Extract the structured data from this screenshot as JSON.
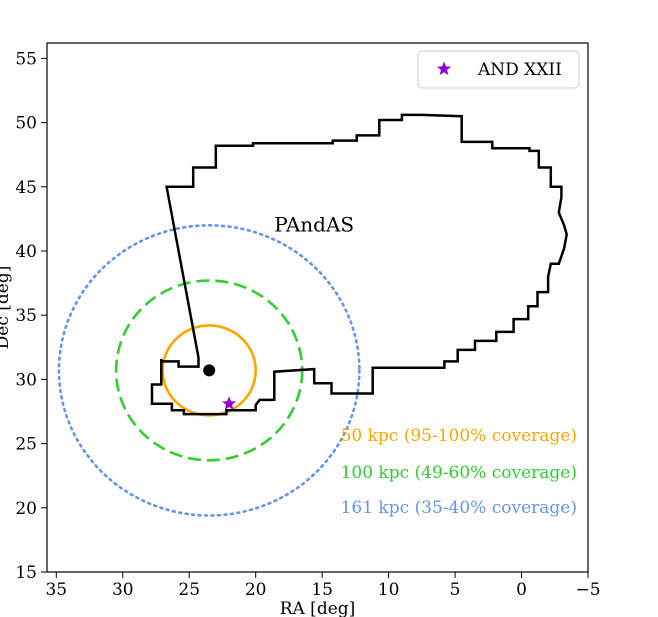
{
  "chart_data": {
    "type": "line",
    "title": "",
    "xlabel": "RA [deg]",
    "ylabel": "Dec [deg]",
    "xlim": [
      35.7,
      -5
    ],
    "ylim": [
      15,
      56.2
    ],
    "x_ticks": [
      35,
      30,
      25,
      20,
      15,
      10,
      5,
      0,
      -5
    ],
    "x_tick_labels": [
      "35",
      "30",
      "25",
      "20",
      "15",
      "10",
      "5",
      "0",
      "−5"
    ],
    "y_ticks": [
      15,
      20,
      25,
      30,
      35,
      40,
      45,
      50,
      55
    ],
    "y_tick_labels": [
      "15",
      "20",
      "25",
      "30",
      "35",
      "40",
      "45",
      "50",
      "55"
    ],
    "grid": false,
    "legend": {
      "position": "top-right",
      "entries": [
        {
          "label": "AND XXII",
          "marker": "star",
          "color": "#9400D3"
        }
      ]
    },
    "annotation": {
      "text": "PAndAS",
      "x": 15.6,
      "y": 41.5
    },
    "center": {
      "ra": 23.5,
      "dec": 30.7,
      "color": "#000000"
    },
    "satellite": {
      "name": "AND XXII",
      "ra": 22.0,
      "dec": 28.1,
      "color": "#9400D3"
    },
    "circles": [
      {
        "radius_deg": 3.5,
        "style": "solid",
        "color": "#FFA500",
        "label": "50 kpc (95-100% coverage)"
      },
      {
        "radius_deg": 7.0,
        "style": "dashed",
        "color": "#32CD32",
        "label": "100 kpc (49-60% coverage)"
      },
      {
        "radius_deg": 11.3,
        "style": "dotted",
        "color": "#6495ED",
        "label": "161 kpc (35-40% coverage)"
      }
    ],
    "footprint": {
      "name": "PAndAS",
      "color": "#000000",
      "points": [
        [
          24.8,
          27.3
        ],
        [
          22.2,
          27.3
        ],
        [
          22.2,
          27.6
        ],
        [
          20.0,
          27.6
        ],
        [
          20.0,
          28.0
        ],
        [
          19.7,
          28.4
        ],
        [
          18.6,
          28.4
        ],
        [
          18.6,
          30.6
        ],
        [
          15.6,
          30.8
        ],
        [
          15.6,
          29.7
        ],
        [
          14.3,
          29.7
        ],
        [
          14.3,
          28.9
        ],
        [
          11.2,
          28.9
        ],
        [
          11.2,
          30.9
        ],
        [
          5.8,
          30.9
        ],
        [
          5.8,
          31.4
        ],
        [
          4.8,
          31.4
        ],
        [
          4.8,
          32.3
        ],
        [
          3.5,
          32.3
        ],
        [
          3.5,
          33.0
        ],
        [
          1.9,
          33.0
        ],
        [
          1.9,
          33.7
        ],
        [
          0.6,
          33.7
        ],
        [
          0.6,
          34.7
        ],
        [
          -0.5,
          34.7
        ],
        [
          -0.5,
          35.7
        ],
        [
          -1.2,
          35.7
        ],
        [
          -1.2,
          36.8
        ],
        [
          -2.0,
          36.8
        ],
        [
          -2.0,
          38.0
        ],
        [
          -2.2,
          39.0
        ],
        [
          -2.8,
          39.0
        ],
        [
          -3.2,
          40.2
        ],
        [
          -3.4,
          41.3
        ],
        [
          -3.2,
          42.0
        ],
        [
          -2.8,
          43.0
        ],
        [
          -3.0,
          44.2
        ],
        [
          -3.0,
          45.0
        ],
        [
          -2.2,
          45.0
        ],
        [
          -2.2,
          46.5
        ],
        [
          -1.3,
          46.5
        ],
        [
          -1.3,
          47.8
        ],
        [
          -0.6,
          47.8
        ],
        [
          -0.6,
          48.0
        ],
        [
          2.2,
          48.0
        ],
        [
          2.2,
          48.5
        ],
        [
          4.5,
          48.5
        ],
        [
          4.5,
          50.5
        ],
        [
          7.5,
          50.6
        ],
        [
          9.0,
          50.6
        ],
        [
          9.0,
          50.2
        ],
        [
          10.7,
          50.2
        ],
        [
          10.7,
          49.0
        ],
        [
          12.4,
          49.0
        ],
        [
          12.4,
          48.6
        ],
        [
          14.2,
          48.6
        ],
        [
          14.2,
          48.4
        ],
        [
          20.2,
          48.4
        ],
        [
          20.2,
          48.2
        ],
        [
          23.0,
          48.2
        ],
        [
          23.0,
          46.5
        ],
        [
          24.7,
          46.5
        ],
        [
          24.7,
          45.0
        ],
        [
          26.7,
          45.0
        ],
        [
          24.3,
          31.7
        ],
        [
          24.3,
          31.0
        ],
        [
          25.8,
          31.0
        ],
        [
          25.8,
          31.4
        ],
        [
          27.1,
          31.4
        ],
        [
          27.1,
          31.6
        ],
        [
          27.1,
          29.6
        ],
        [
          27.8,
          29.6
        ],
        [
          27.8,
          28.1
        ],
        [
          26.3,
          28.1
        ],
        [
          26.3,
          27.6
        ],
        [
          25.4,
          27.6
        ],
        [
          25.4,
          27.3
        ],
        [
          24.8,
          27.3
        ]
      ]
    }
  }
}
